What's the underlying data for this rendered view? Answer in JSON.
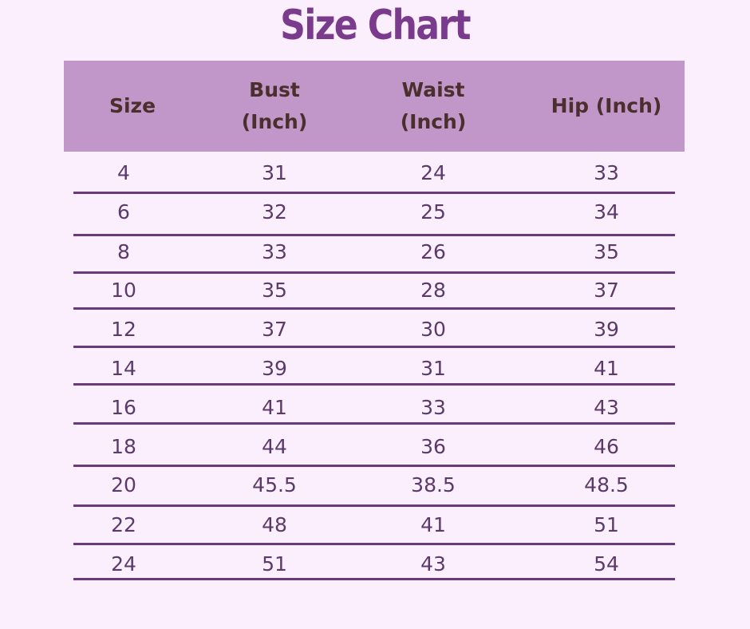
{
  "title": "Size Chart",
  "colors": {
    "background": "#fbeffd",
    "header": "#c196c8",
    "header_text": "#4b2f2c",
    "title": "#7b3b8c",
    "rule": "#6b3a7b"
  },
  "columns": [
    "Size",
    "Bust\n(Inch)",
    "Waist\n(Inch)",
    "Hip (Inch)"
  ],
  "rows": [
    [
      "4",
      "31",
      "24",
      "33"
    ],
    [
      "6",
      "32",
      "25",
      "34"
    ],
    [
      "8",
      "33",
      "26",
      "35"
    ],
    [
      "10",
      "35",
      "28",
      "37"
    ],
    [
      "12",
      "37",
      "30",
      "39"
    ],
    [
      "14",
      "39",
      "31",
      "41"
    ],
    [
      "16",
      "41",
      "33",
      "43"
    ],
    [
      "18",
      "44",
      "36",
      "46"
    ],
    [
      "20",
      "45.5",
      "38.5",
      "48.5"
    ],
    [
      "22",
      "48",
      "41",
      "51"
    ],
    [
      "24",
      "51",
      "43",
      "54"
    ]
  ]
}
